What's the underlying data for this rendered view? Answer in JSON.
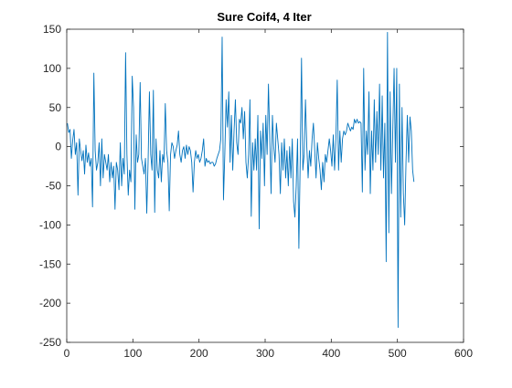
{
  "chart_data": {
    "type": "line",
    "title": "Sure Coif4, 4 Iter",
    "xlabel": "",
    "ylabel": "",
    "xlim": [
      0,
      600
    ],
    "ylim": [
      -250,
      150
    ],
    "xticks": [
      0,
      100,
      200,
      300,
      400,
      500,
      600
    ],
    "yticks": [
      150,
      100,
      50,
      0,
      -50,
      -100,
      -150,
      -200,
      -250
    ],
    "grid": false,
    "line_color": "#0072BD",
    "series": [
      {
        "points": [
          [
            1,
            30
          ],
          [
            3,
            18
          ],
          [
            5,
            22
          ],
          [
            7,
            -15
          ],
          [
            9,
            8
          ],
          [
            11,
            22
          ],
          [
            13,
            -10
          ],
          [
            15,
            5
          ],
          [
            17,
            -62
          ],
          [
            19,
            10
          ],
          [
            21,
            -5
          ],
          [
            23,
            -18
          ],
          [
            25,
            -5
          ],
          [
            27,
            -35
          ],
          [
            29,
            2
          ],
          [
            31,
            -20
          ],
          [
            33,
            -8
          ],
          [
            35,
            -25
          ],
          [
            37,
            -15
          ],
          [
            39,
            -77
          ],
          [
            41,
            94
          ],
          [
            43,
            -5
          ],
          [
            45,
            -30
          ],
          [
            47,
            -20
          ],
          [
            49,
            5
          ],
          [
            51,
            -50
          ],
          [
            53,
            10
          ],
          [
            55,
            -40
          ],
          [
            57,
            -10
          ],
          [
            59,
            -20
          ],
          [
            61,
            -30
          ],
          [
            63,
            -10
          ],
          [
            65,
            -45
          ],
          [
            67,
            -20
          ],
          [
            69,
            -40
          ],
          [
            71,
            -25
          ],
          [
            73,
            -80
          ],
          [
            75,
            -20
          ],
          [
            77,
            -30
          ],
          [
            79,
            -55
          ],
          [
            81,
            5
          ],
          [
            83,
            -50
          ],
          [
            85,
            -15
          ],
          [
            87,
            -35
          ],
          [
            89,
            120
          ],
          [
            91,
            -10
          ],
          [
            93,
            -62
          ],
          [
            95,
            -30
          ],
          [
            97,
            -45
          ],
          [
            99,
            90
          ],
          [
            101,
            50
          ],
          [
            103,
            -80
          ],
          [
            105,
            15
          ],
          [
            107,
            -20
          ],
          [
            109,
            -10
          ],
          [
            111,
            82
          ],
          [
            113,
            -15
          ],
          [
            115,
            -25
          ],
          [
            117,
            -35
          ],
          [
            119,
            -15
          ],
          [
            121,
            -85
          ],
          [
            123,
            -20
          ],
          [
            125,
            70
          ],
          [
            127,
            -10
          ],
          [
            129,
            -30
          ],
          [
            131,
            72
          ],
          [
            133,
            -84
          ],
          [
            135,
            10
          ],
          [
            137,
            -30
          ],
          [
            139,
            -40
          ],
          [
            141,
            -5
          ],
          [
            143,
            -45
          ],
          [
            145,
            -10
          ],
          [
            147,
            -20
          ],
          [
            149,
            55
          ],
          [
            151,
            -5
          ],
          [
            153,
            -20
          ],
          [
            155,
            -82
          ],
          [
            157,
            -10
          ],
          [
            159,
            5
          ],
          [
            161,
            0
          ],
          [
            163,
            -15
          ],
          [
            165,
            -5
          ],
          [
            167,
            2
          ],
          [
            169,
            20
          ],
          [
            171,
            -10
          ],
          [
            173,
            -20
          ],
          [
            175,
            -5
          ],
          [
            177,
            0
          ],
          [
            179,
            -15
          ],
          [
            181,
            2
          ],
          [
            183,
            -10
          ],
          [
            185,
            0
          ],
          [
            187,
            -5
          ],
          [
            189,
            -20
          ],
          [
            191,
            -58
          ],
          [
            193,
            -20
          ],
          [
            195,
            -5
          ],
          [
            197,
            -15
          ],
          [
            199,
            -10
          ],
          [
            201,
            -20
          ],
          [
            203,
            -15
          ],
          [
            205,
            -5
          ],
          [
            207,
            10
          ],
          [
            209,
            -25
          ],
          [
            211,
            -15
          ],
          [
            213,
            -20
          ],
          [
            215,
            -18
          ],
          [
            217,
            -22
          ],
          [
            219,
            -20
          ],
          [
            221,
            -20
          ],
          [
            223,
            -25
          ],
          [
            225,
            -22
          ],
          [
            227,
            -15
          ],
          [
            229,
            -10
          ],
          [
            231,
            -5
          ],
          [
            233,
            10
          ],
          [
            235,
            140
          ],
          [
            237,
            -68
          ],
          [
            239,
            -10
          ],
          [
            241,
            60
          ],
          [
            243,
            25
          ],
          [
            245,
            70
          ],
          [
            247,
            -20
          ],
          [
            249,
            40
          ],
          [
            251,
            -30
          ],
          [
            253,
            20
          ],
          [
            255,
            60
          ],
          [
            257,
            5
          ],
          [
            259,
            -10
          ],
          [
            261,
            35
          ],
          [
            263,
            30
          ],
          [
            265,
            50
          ],
          [
            267,
            10
          ],
          [
            269,
            45
          ],
          [
            271,
            -20
          ],
          [
            273,
            -40
          ],
          [
            275,
            -10
          ],
          [
            277,
            60
          ],
          [
            279,
            -89
          ],
          [
            281,
            5
          ],
          [
            283,
            -30
          ],
          [
            285,
            10
          ],
          [
            287,
            -30
          ],
          [
            289,
            40
          ],
          [
            291,
            -105
          ],
          [
            293,
            20
          ],
          [
            295,
            -15
          ],
          [
            297,
            30
          ],
          [
            299,
            -50
          ],
          [
            301,
            40
          ],
          [
            303,
            -10
          ],
          [
            305,
            80
          ],
          [
            307,
            10
          ],
          [
            309,
            -60
          ],
          [
            311,
            40
          ],
          [
            313,
            0
          ],
          [
            315,
            -20
          ],
          [
            317,
            30
          ],
          [
            319,
            10
          ],
          [
            321,
            -10
          ],
          [
            323,
            -60
          ],
          [
            325,
            5
          ],
          [
            327,
            -30
          ],
          [
            329,
            10
          ],
          [
            331,
            -40
          ],
          [
            333,
            -5
          ],
          [
            335,
            -50
          ],
          [
            337,
            0
          ],
          [
            339,
            -40
          ],
          [
            341,
            10
          ],
          [
            343,
            -70
          ],
          [
            345,
            -90
          ],
          [
            347,
            -50
          ],
          [
            349,
            10
          ],
          [
            351,
            -130
          ],
          [
            353,
            -20
          ],
          [
            355,
            113
          ],
          [
            357,
            -30
          ],
          [
            359,
            -10
          ],
          [
            361,
            60
          ],
          [
            363,
            0
          ],
          [
            365,
            -40
          ],
          [
            367,
            -5
          ],
          [
            369,
            -25
          ],
          [
            371,
            10
          ],
          [
            373,
            30
          ],
          [
            375,
            -5
          ],
          [
            377,
            -40
          ],
          [
            379,
            5
          ],
          [
            381,
            -15
          ],
          [
            383,
            -30
          ],
          [
            385,
            -55
          ],
          [
            387,
            -20
          ],
          [
            389,
            -45
          ],
          [
            391,
            -10
          ],
          [
            393,
            -20
          ],
          [
            395,
            -5
          ],
          [
            397,
            10
          ],
          [
            399,
            -5
          ],
          [
            401,
            -25
          ],
          [
            403,
            15
          ],
          [
            405,
            -30
          ],
          [
            407,
            10
          ],
          [
            409,
            85
          ],
          [
            411,
            -30
          ],
          [
            413,
            20
          ],
          [
            415,
            -20
          ],
          [
            417,
            10
          ],
          [
            419,
            20
          ],
          [
            421,
            15
          ],
          [
            423,
            20
          ],
          [
            425,
            30
          ],
          [
            427,
            25
          ],
          [
            429,
            20
          ],
          [
            431,
            25
          ],
          [
            433,
            22
          ],
          [
            435,
            35
          ],
          [
            437,
            30
          ],
          [
            439,
            35
          ],
          [
            441,
            30
          ],
          [
            443,
            32
          ],
          [
            445,
            30
          ],
          [
            447,
            -58
          ],
          [
            449,
            100
          ],
          [
            451,
            -30
          ],
          [
            453,
            20
          ],
          [
            455,
            -10
          ],
          [
            457,
            70
          ],
          [
            459,
            -60
          ],
          [
            461,
            20
          ],
          [
            463,
            -30
          ],
          [
            465,
            60
          ],
          [
            467,
            -20
          ],
          [
            469,
            45
          ],
          [
            471,
            -10
          ],
          [
            473,
            80
          ],
          [
            475,
            -30
          ],
          [
            477,
            65
          ],
          [
            479,
            -40
          ],
          [
            481,
            30
          ],
          [
            483,
            -147
          ],
          [
            485,
            146
          ],
          [
            487,
            -110
          ],
          [
            489,
            70
          ],
          [
            491,
            -60
          ],
          [
            493,
            20
          ],
          [
            495,
            100
          ],
          [
            497,
            -20
          ],
          [
            499,
            100
          ],
          [
            501,
            -231
          ],
          [
            503,
            80
          ],
          [
            505,
            -90
          ],
          [
            507,
            50
          ],
          [
            509,
            -60
          ],
          [
            511,
            -100
          ],
          [
            513,
            -20
          ],
          [
            515,
            40
          ],
          [
            517,
            -20
          ],
          [
            519,
            38
          ],
          [
            521,
            20
          ],
          [
            523,
            -30
          ],
          [
            525,
            -45
          ]
        ]
      }
    ]
  }
}
